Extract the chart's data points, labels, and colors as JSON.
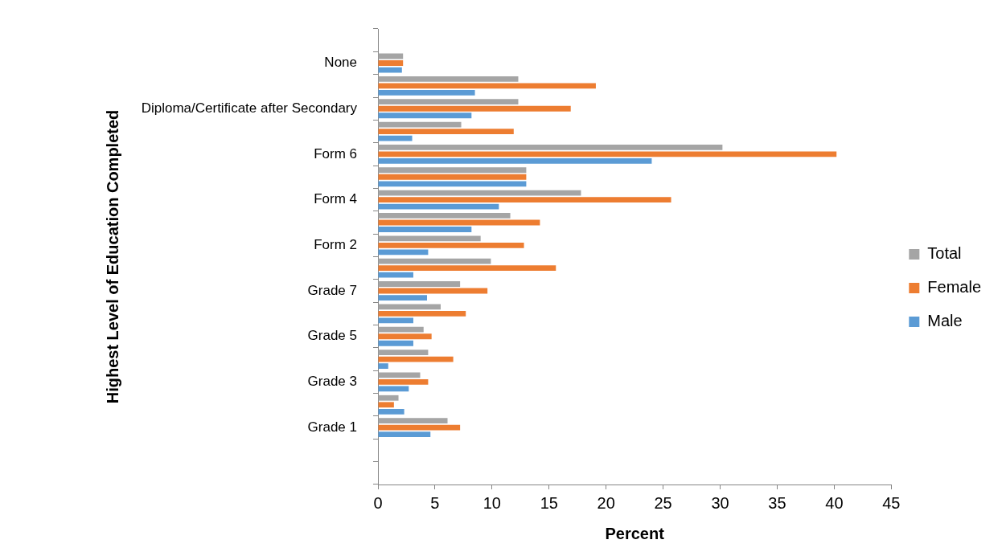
{
  "chart_data": {
    "type": "bar",
    "orientation": "horizontal",
    "xlabel": "Percent",
    "ylabel": "Highest Level of Education Completed",
    "categories": [
      null,
      "None",
      null,
      "Diploma/Certificate after Secondary",
      null,
      "Form 6",
      null,
      "Form 4",
      null,
      "Form 2",
      null,
      "Grade 7",
      null,
      "Grade 5",
      null,
      "Grade 3",
      null,
      "Grade 1",
      null,
      null
    ],
    "series": [
      {
        "name": "Total",
        "color": "#a5a5a5",
        "values": [
          null,
          2.2,
          12.3,
          12.3,
          7.3,
          30.2,
          13.0,
          17.8,
          11.6,
          9.0,
          9.9,
          7.2,
          5.5,
          4.0,
          4.4,
          3.7,
          1.8,
          6.1,
          null,
          null
        ]
      },
      {
        "name": "Female",
        "color": "#ed7d31",
        "values": [
          null,
          2.2,
          19.1,
          16.9,
          11.9,
          40.2,
          13.0,
          25.7,
          14.2,
          12.8,
          15.6,
          9.6,
          7.7,
          4.7,
          6.6,
          4.4,
          1.4,
          7.2,
          null,
          null
        ]
      },
      {
        "name": "Male",
        "color": "#5b9bd5",
        "values": [
          null,
          2.1,
          8.5,
          8.2,
          3.0,
          24.0,
          13.0,
          10.6,
          8.2,
          4.4,
          3.1,
          4.3,
          3.1,
          3.1,
          0.9,
          2.7,
          2.3,
          4.6,
          null,
          null
        ]
      }
    ],
    "xlim": [
      0,
      45
    ],
    "xticks": [
      0,
      5,
      10,
      15,
      20,
      25,
      30,
      35,
      40,
      45
    ],
    "grid": false,
    "legend": "right"
  }
}
